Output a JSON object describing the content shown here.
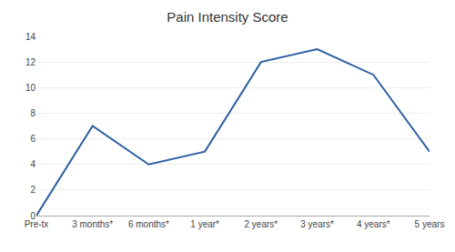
{
  "chart_data": {
    "type": "line",
    "title": "Pain Intensity Score",
    "categories": [
      "Pre-tx",
      "3 months*",
      "6 months*",
      "1 year*",
      "2 years*",
      "3 years*",
      "4 years*",
      "5 years"
    ],
    "values": [
      0,
      7,
      4,
      5,
      12,
      13,
      11,
      5
    ],
    "color": "#2e5fa3",
    "ylim": [
      0,
      14
    ],
    "yticks": [
      0,
      2,
      4,
      6,
      8,
      10,
      12,
      14
    ],
    "grid": true
  }
}
